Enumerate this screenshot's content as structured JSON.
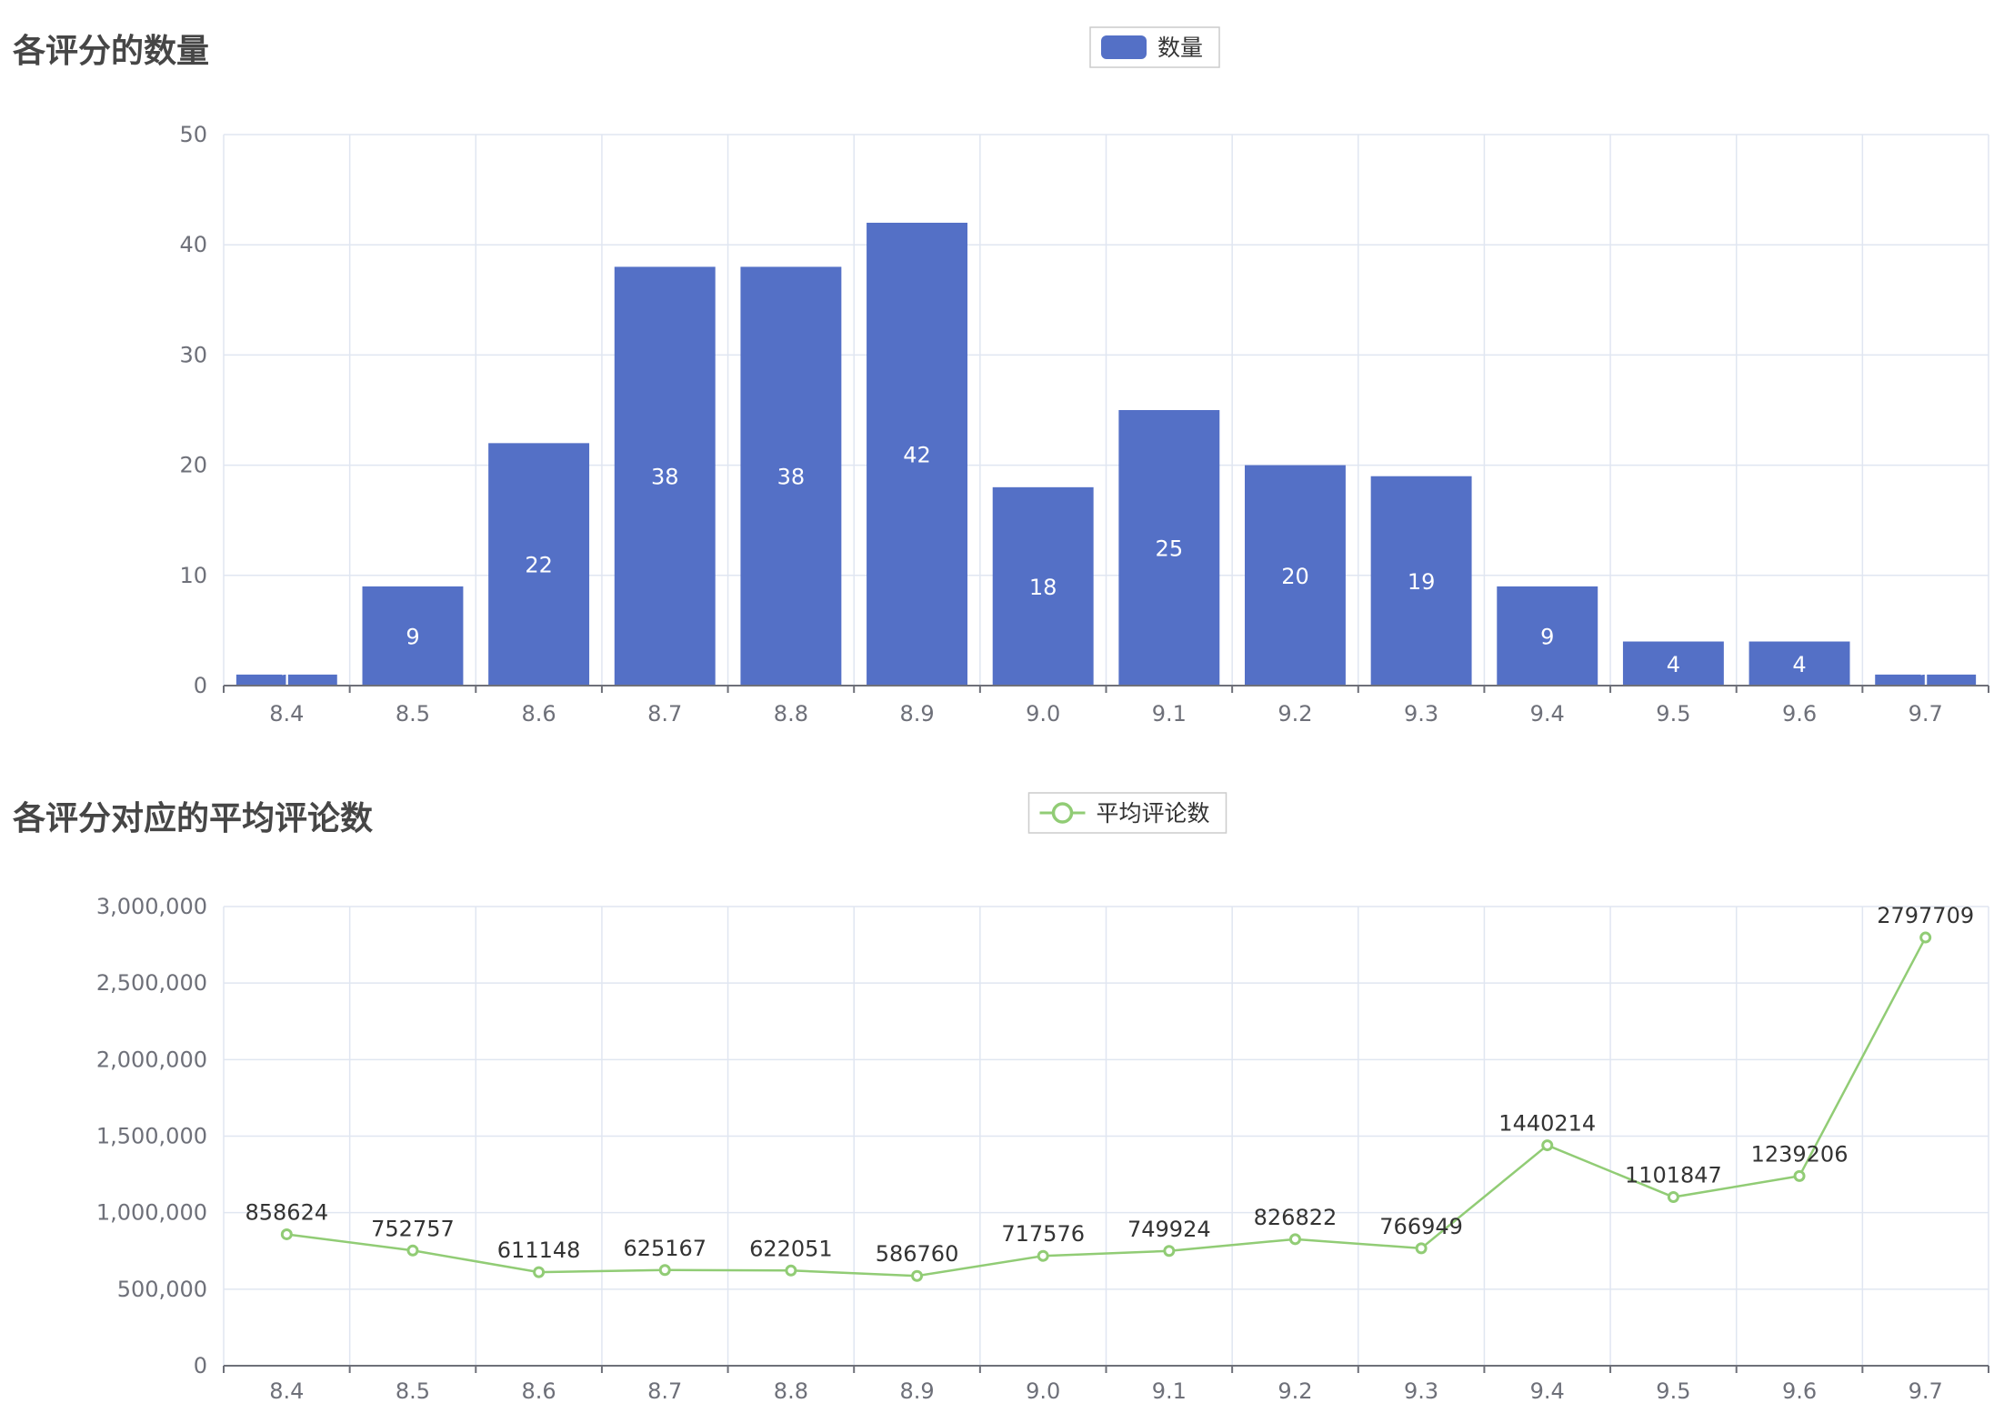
{
  "chart_data": [
    {
      "type": "bar",
      "title": "各评分的数量",
      "legend": {
        "label": "数量",
        "position": "top-center"
      },
      "categories": [
        "8.4",
        "8.5",
        "8.6",
        "8.7",
        "8.8",
        "8.9",
        "9.0",
        "9.1",
        "9.2",
        "9.3",
        "9.4",
        "9.5",
        "9.6",
        "9.7"
      ],
      "series": [
        {
          "name": "数量",
          "values": [
            1,
            9,
            22,
            38,
            38,
            42,
            18,
            25,
            20,
            19,
            9,
            4,
            4,
            1
          ]
        }
      ],
      "ylim": [
        0,
        50
      ],
      "yticks": [
        0,
        10,
        20,
        30,
        40,
        50
      ],
      "ytick_labels": [
        "0",
        "10",
        "20",
        "30",
        "40",
        "50"
      ],
      "grid": true,
      "color": "#5470c6"
    },
    {
      "type": "line",
      "title": "各评分对应的平均评论数",
      "legend": {
        "label": "平均评论数",
        "position": "top-center"
      },
      "categories": [
        "8.4",
        "8.5",
        "8.6",
        "8.7",
        "8.8",
        "8.9",
        "9.0",
        "9.1",
        "9.2",
        "9.3",
        "9.4",
        "9.5",
        "9.6",
        "9.7"
      ],
      "series": [
        {
          "name": "平均评论数",
          "values": [
            858624,
            752757,
            611148,
            625167,
            622051,
            586760,
            717576,
            749924,
            826822,
            766949,
            1440214,
            1101847,
            1239206,
            2797709
          ]
        }
      ],
      "ylim": [
        0,
        3000000
      ],
      "yticks": [
        0,
        500000,
        1000000,
        1500000,
        2000000,
        2500000,
        3000000
      ],
      "ytick_labels": [
        "0",
        "500,000",
        "1,000,000",
        "1,500,000",
        "2,000,000",
        "2,500,000",
        "3,000,000"
      ],
      "grid": true,
      "color": "#91cc75"
    }
  ]
}
